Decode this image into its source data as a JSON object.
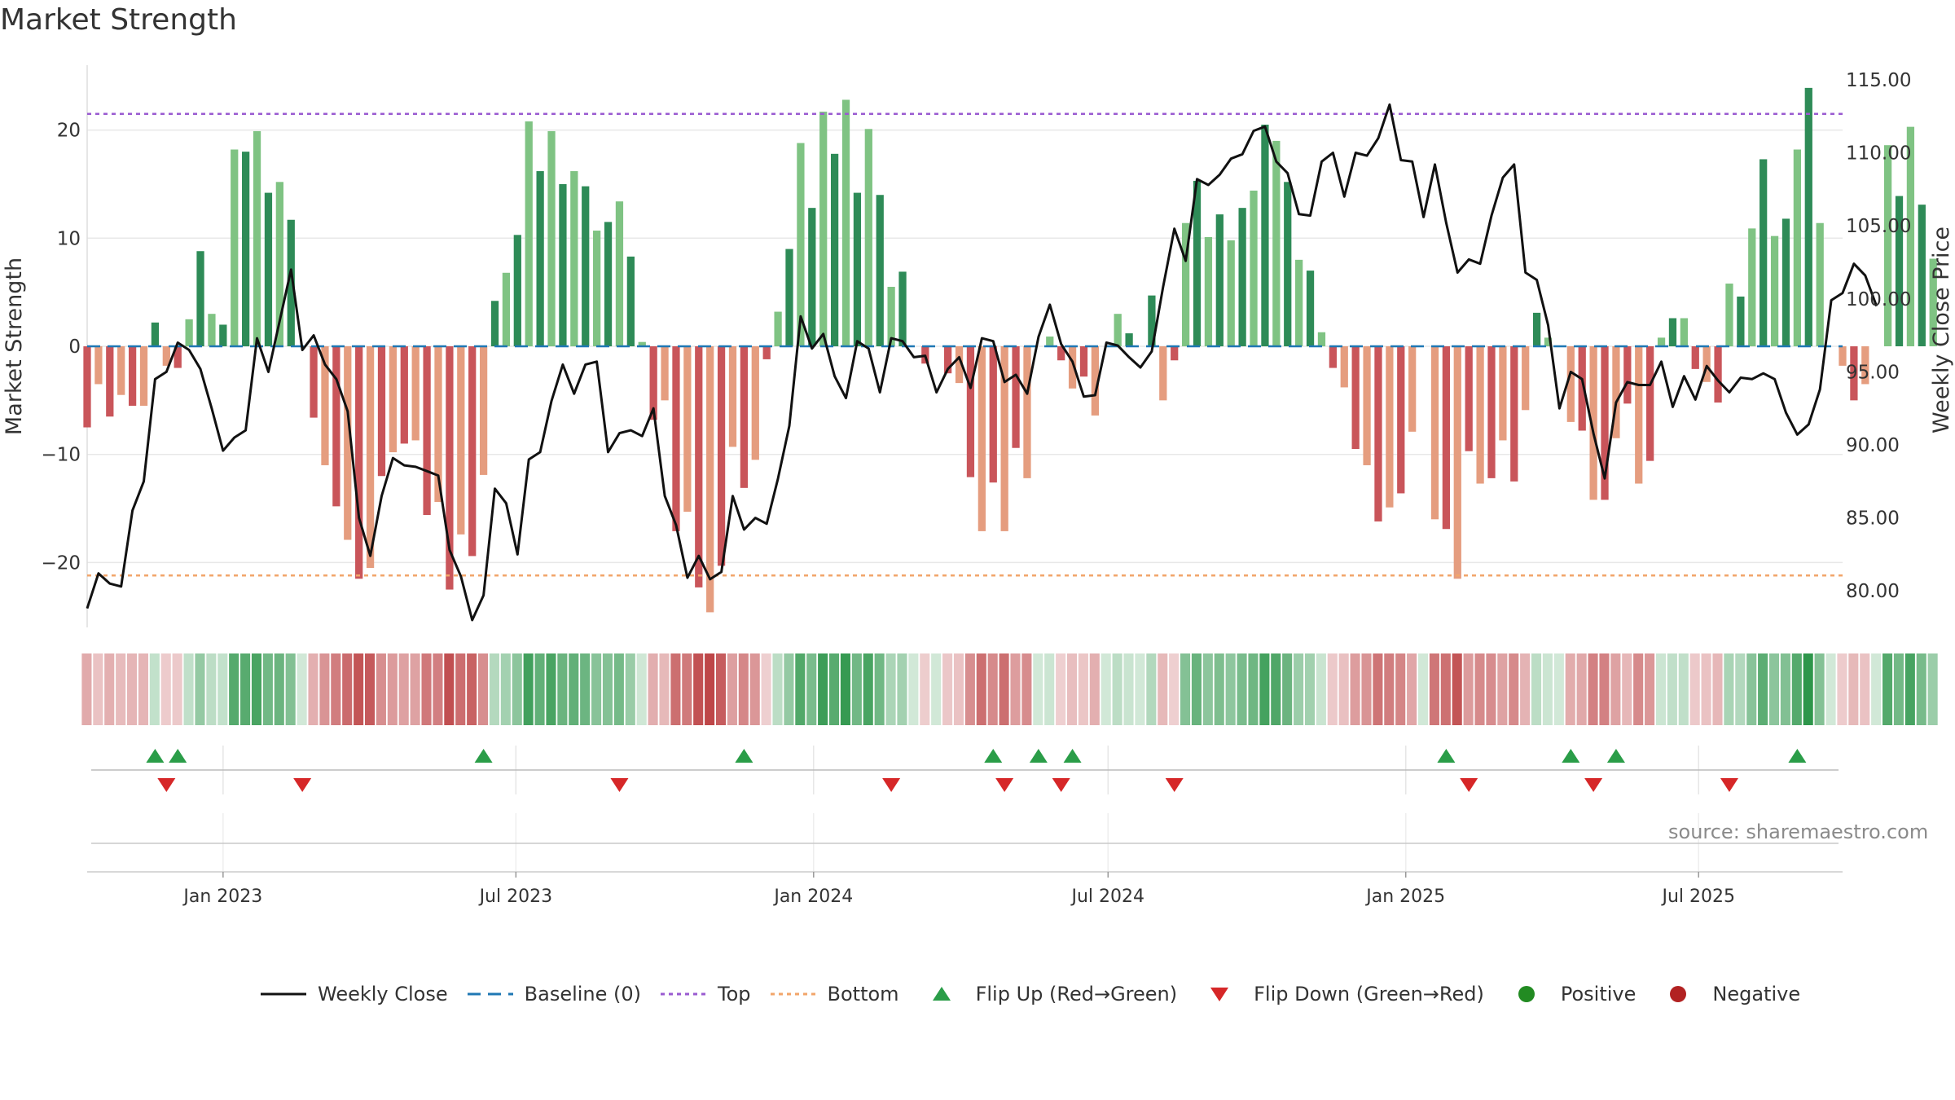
{
  "title": "Market Strength",
  "source": "source: sharemaestro.com",
  "colors": {
    "positive_strong": "#2e8b57",
    "positive_weak": "#7fc383",
    "negative_strong": "#c9555a",
    "negative_weak": "#e59d7f",
    "close_line": "#111111",
    "baseline": "#1f77b4",
    "top": "#9a5bd1",
    "bottom": "#f2a56a",
    "flip_up": "#2a9d48",
    "flip_down": "#d62728"
  },
  "legend": [
    {
      "key": "close",
      "label": "Weekly Close"
    },
    {
      "key": "baseline",
      "label": "Baseline (0)"
    },
    {
      "key": "top",
      "label": "Top"
    },
    {
      "key": "bottom",
      "label": "Bottom"
    },
    {
      "key": "flip_up",
      "label": "Flip Up (Red→Green)"
    },
    {
      "key": "flip_down",
      "label": "Flip Down (Green→Red)"
    },
    {
      "key": "positive",
      "label": "Positive"
    },
    {
      "key": "negative",
      "label": "Negative"
    }
  ],
  "chart_data": {
    "type": "bar",
    "title": "Market Strength",
    "ylabel": "Market Strength",
    "ylabel_right": "Weekly Close Price",
    "ylim": [
      -26,
      26
    ],
    "ylim_right": [
      77.5,
      116
    ],
    "yticks": [
      -20,
      -10,
      0,
      10,
      20
    ],
    "yticks_right": [
      80,
      85,
      90,
      95,
      100,
      105,
      110,
      115
    ],
    "ytick_labels": [
      "−20",
      "−10",
      "0",
      "10",
      "20"
    ],
    "ytick_labels_right": [
      "80.00",
      "85.00",
      "90.00",
      "95.00",
      "100.00",
      "105.00",
      "110.00",
      "115.00"
    ],
    "x_start": "2022-10-09",
    "x_end": "2025-09-28",
    "xtick_dates": [
      "2023-01-01",
      "2023-07-01",
      "2024-01-01",
      "2024-07-01",
      "2025-01-01",
      "2025-07-01"
    ],
    "xtick_labels": [
      "Jan 2023",
      "Jul 2023",
      "Jan 2024",
      "Jul 2024",
      "Jan 2025",
      "Jul 2025"
    ],
    "top_level": 21.5,
    "bottom_level": -21.2,
    "strength": [
      -7.5,
      -3.5,
      -6.5,
      -4.5,
      -5.5,
      -5.5,
      2.2,
      -1.8,
      -2,
      2.5,
      8.8,
      3,
      2,
      18.2,
      18,
      19.9,
      14.2,
      15.2,
      11.7,
      0,
      -6.6,
      -11,
      -14.8,
      -17.9,
      -21.5,
      -20.5,
      -12,
      -9.8,
      -9,
      -8.7,
      -15.6,
      -14.4,
      -22.5,
      -17.4,
      -19.4,
      -11.9,
      4.2,
      6.8,
      10.3,
      20.8,
      16.2,
      19.9,
      15,
      16.2,
      14.8,
      10.7,
      11.5,
      13.4,
      8.3,
      0.4,
      -6.8,
      -5,
      -17.1,
      -15.3,
      -22.3,
      -24.6,
      -20.3,
      -9.3,
      -13.1,
      -10.5,
      -1.2,
      3.2,
      9,
      18.8,
      12.8,
      21.7,
      17.8,
      22.8,
      14.2,
      20.1,
      14,
      5.5,
      6.9,
      0,
      -1.6,
      0,
      -2.5,
      -3.4,
      -12.1,
      -17.1,
      -12.6,
      -17.1,
      -9.4,
      -12.2,
      0,
      0.9,
      -1.3,
      -3.9,
      -2.8,
      -6.4,
      0,
      3,
      1.2,
      0,
      4.7,
      -5,
      -1.3,
      11.4,
      15.3,
      10.1,
      12.2,
      9.8,
      12.8,
      14.4,
      20.5,
      19,
      15.2,
      8,
      7,
      1.3,
      -2,
      -3.8,
      -9.5,
      -11,
      -16.2,
      -14.9,
      -13.6,
      -7.9,
      0,
      -16,
      -16.9,
      -21.5,
      -9.7,
      -12.7,
      -12.2,
      -8.7,
      -12.5,
      -5.9,
      3.1,
      0.8,
      0,
      -7,
      -7.8,
      -14.2,
      -14.2,
      -8.5,
      -5.3,
      -12.7,
      -10.6,
      0.8,
      2.6,
      2.6,
      -2.1,
      -3.3,
      -5.2,
      5.8,
      4.6,
      10.9,
      17.3,
      10.2,
      11.8,
      18.2,
      23.9,
      11.4,
      0,
      -1.8,
      -5,
      -3.5,
      0,
      18.6,
      13.9,
      20.3,
      13.1,
      8.1
    ],
    "weekly_close": [
      78.8,
      81.2,
      80.5,
      80.3,
      85.5,
      87.5,
      94.5,
      95,
      97,
      96.5,
      95.2,
      92.5,
      89.6,
      90.5,
      91,
      97.3,
      95,
      98.5,
      102,
      96.5,
      97.5,
      95.5,
      94.5,
      92.3,
      85,
      82.4,
      86.5,
      89.1,
      88.6,
      88.5,
      88.2,
      87.9,
      82.8,
      81,
      78,
      79.7,
      87,
      86,
      82.5,
      89,
      89.5,
      93,
      95.5,
      93.5,
      95.5,
      95.7,
      89.5,
      90.8,
      91,
      90.6,
      92.5,
      86.5,
      84.5,
      80.9,
      82.4,
      80.8,
      81.3,
      86.5,
      84.2,
      85,
      84.6,
      87.7,
      91.3,
      98.8,
      96.6,
      97.6,
      94.7,
      93.2,
      97.1,
      96.6,
      93.6,
      97.3,
      97.1,
      96,
      96.1,
      93.6,
      95.2,
      96,
      93.9,
      97.3,
      97.1,
      94.3,
      94.8,
      93.5,
      97.4,
      99.6,
      96.9,
      95.7,
      93.3,
      93.4,
      97,
      96.8,
      96,
      95.3,
      96.4,
      100.8,
      104.8,
      102.6,
      108.2,
      107.8,
      108.5,
      109.6,
      109.9,
      111.5,
      111.8,
      109.4,
      108.6,
      105.8,
      105.7,
      109.4,
      110,
      107,
      110,
      109.8,
      111,
      113.3,
      109.5,
      109.4,
      105.6,
      109.2,
      105.2,
      101.8,
      102.7,
      102.4,
      105.7,
      108.3,
      109.2,
      101.8,
      101.3,
      98.2,
      92.5,
      95,
      94.5,
      90.8,
      87.7,
      92.9,
      94.3,
      94.1,
      94.1,
      95.7,
      92.6,
      94.7,
      93.1,
      95.4,
      94.4,
      93.6,
      94.6,
      94.5,
      94.9,
      94.5,
      92.2,
      90.7,
      91.4,
      93.8,
      99.9,
      100.4,
      102.4,
      101.6,
      99.5
    ],
    "flip_up_dates": [
      "2022-11-20",
      "2022-12-04",
      "2023-06-11",
      "2023-11-19",
      "2024-04-21",
      "2024-05-19",
      "2024-06-09",
      "2025-01-26",
      "2025-04-13",
      "2025-05-11",
      "2025-08-31"
    ],
    "flip_down_dates": [
      "2022-11-27",
      "2023-02-19",
      "2023-09-03",
      "2024-02-18",
      "2024-04-28",
      "2024-06-02",
      "2024-08-11",
      "2025-02-09",
      "2025-04-27",
      "2025-07-20"
    ]
  }
}
